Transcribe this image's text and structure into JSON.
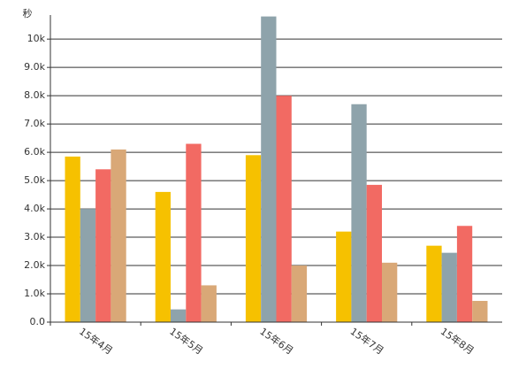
{
  "chart_data": {
    "type": "bar",
    "y_label": "秒",
    "categories": [
      "15年4月",
      "15年5月",
      "15年6月",
      "15年7月",
      "15年8月"
    ],
    "series": [
      {
        "color": "#f6c100",
        "values": [
          5850,
          4600,
          5900,
          3200,
          2700
        ]
      },
      {
        "color": "#8ea3ab",
        "values": [
          4000,
          450,
          10800,
          7700,
          2450
        ]
      },
      {
        "color": "#f26a63",
        "values": [
          5400,
          6300,
          8000,
          4850,
          3400
        ]
      },
      {
        "color": "#d9a877",
        "values": [
          6100,
          1300,
          2000,
          2100,
          750
        ]
      }
    ],
    "ylim": [
      0,
      10850
    ],
    "yticks": [
      {
        "value": 0,
        "label": "0.0"
      },
      {
        "value": 1000,
        "label": "1.0k"
      },
      {
        "value": 2000,
        "label": "2.0k"
      },
      {
        "value": 3000,
        "label": "3.0k"
      },
      {
        "value": 4000,
        "label": "4.0k"
      },
      {
        "value": 5000,
        "label": "5.0k"
      },
      {
        "value": 6000,
        "label": "6.0k"
      },
      {
        "value": 7000,
        "label": "7.0k"
      },
      {
        "value": 8000,
        "label": "8.0k"
      },
      {
        "value": 9000,
        "label": "9.0k"
      },
      {
        "value": 10000,
        "label": "10k"
      }
    ],
    "grid": true
  }
}
